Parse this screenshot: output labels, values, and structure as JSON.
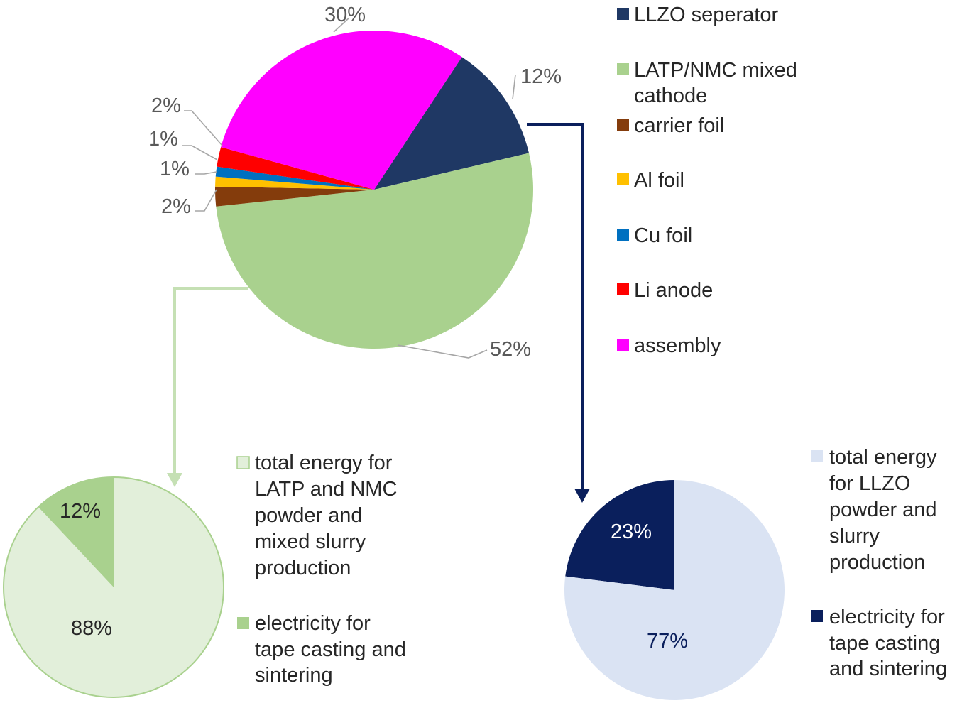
{
  "chart_data": [
    {
      "type": "pie",
      "title": "",
      "series": [
        {
          "values": [
            12,
            52,
            2,
            1,
            1,
            2,
            30
          ],
          "data_labels": [
            "12%",
            "52%",
            "2%",
            "1%",
            "1%",
            "2%",
            "30%"
          ]
        }
      ],
      "categories": [
        "LLZO seperator",
        "LATP/NMC mixed cathode",
        "carrier foil",
        "Al foil",
        "Cu foil",
        "Li anode",
        "assembly"
      ],
      "legend": {
        "position": "right",
        "entries": [
          {
            "lines": [
              "LLZO seperator"
            ]
          },
          {
            "lines": [
              "LATP/NMC mixed",
              "cathode"
            ]
          },
          {
            "lines": [
              "carrier foil"
            ]
          },
          {
            "lines": [
              "Al foil"
            ]
          },
          {
            "lines": [
              "Cu foil"
            ]
          },
          {
            "lines": [
              "Li anode"
            ]
          },
          {
            "lines": [
              "assembly"
            ]
          }
        ]
      },
      "colors": [
        "#1f3864",
        "#a9d18e",
        "#843c0c",
        "#ffc000",
        "#0070c0",
        "#ff0000",
        "#ff00ff"
      ],
      "start_angle_deg": 33.5,
      "direction": "clockwise"
    },
    {
      "type": "pie",
      "title": "",
      "breakdown_of": "LATP/NMC mixed cathode",
      "series": [
        {
          "values": [
            12,
            88
          ],
          "data_labels": [
            "12%",
            "88%"
          ]
        }
      ],
      "categories": [
        "electricity for tape casting and sintering",
        "total energy for LATP and NMC powder and mixed slurry production"
      ],
      "legend": {
        "position": "right",
        "entries": [
          {
            "lines": [
              "total energy for",
              "LATP and NMC",
              "powder and",
              "mixed slurry",
              "production"
            ]
          },
          {
            "lines": [
              "electricity for",
              "tape casting and",
              "sintering"
            ]
          }
        ]
      },
      "colors": [
        "#a9d18e",
        "#e2efda"
      ],
      "border_color": "#a9d18e",
      "start_angle_deg": -43.2,
      "direction": "clockwise"
    },
    {
      "type": "pie",
      "title": "",
      "breakdown_of": "LLZO seperator",
      "series": [
        {
          "values": [
            23,
            77
          ],
          "data_labels": [
            "23%",
            "77%"
          ]
        }
      ],
      "categories": [
        "electricity for tape casting and sintering",
        "total energy for LLZO powder and slurry production"
      ],
      "legend": {
        "position": "right",
        "entries": [
          {
            "lines": [
              "total energy",
              "for LLZO",
              "powder and",
              "slurry",
              "production"
            ]
          },
          {
            "lines": [
              "electricity for",
              "tape casting",
              "and sintering"
            ]
          }
        ]
      },
      "colors": [
        "#0a1f5c",
        "#dae3f3"
      ],
      "label_colors": [
        "#ffffff",
        "#0a1f5c"
      ],
      "start_angle_deg": -82.8,
      "direction": "clockwise"
    }
  ],
  "connector_colors": [
    "#c5e0b4",
    "#0a1f5c"
  ]
}
